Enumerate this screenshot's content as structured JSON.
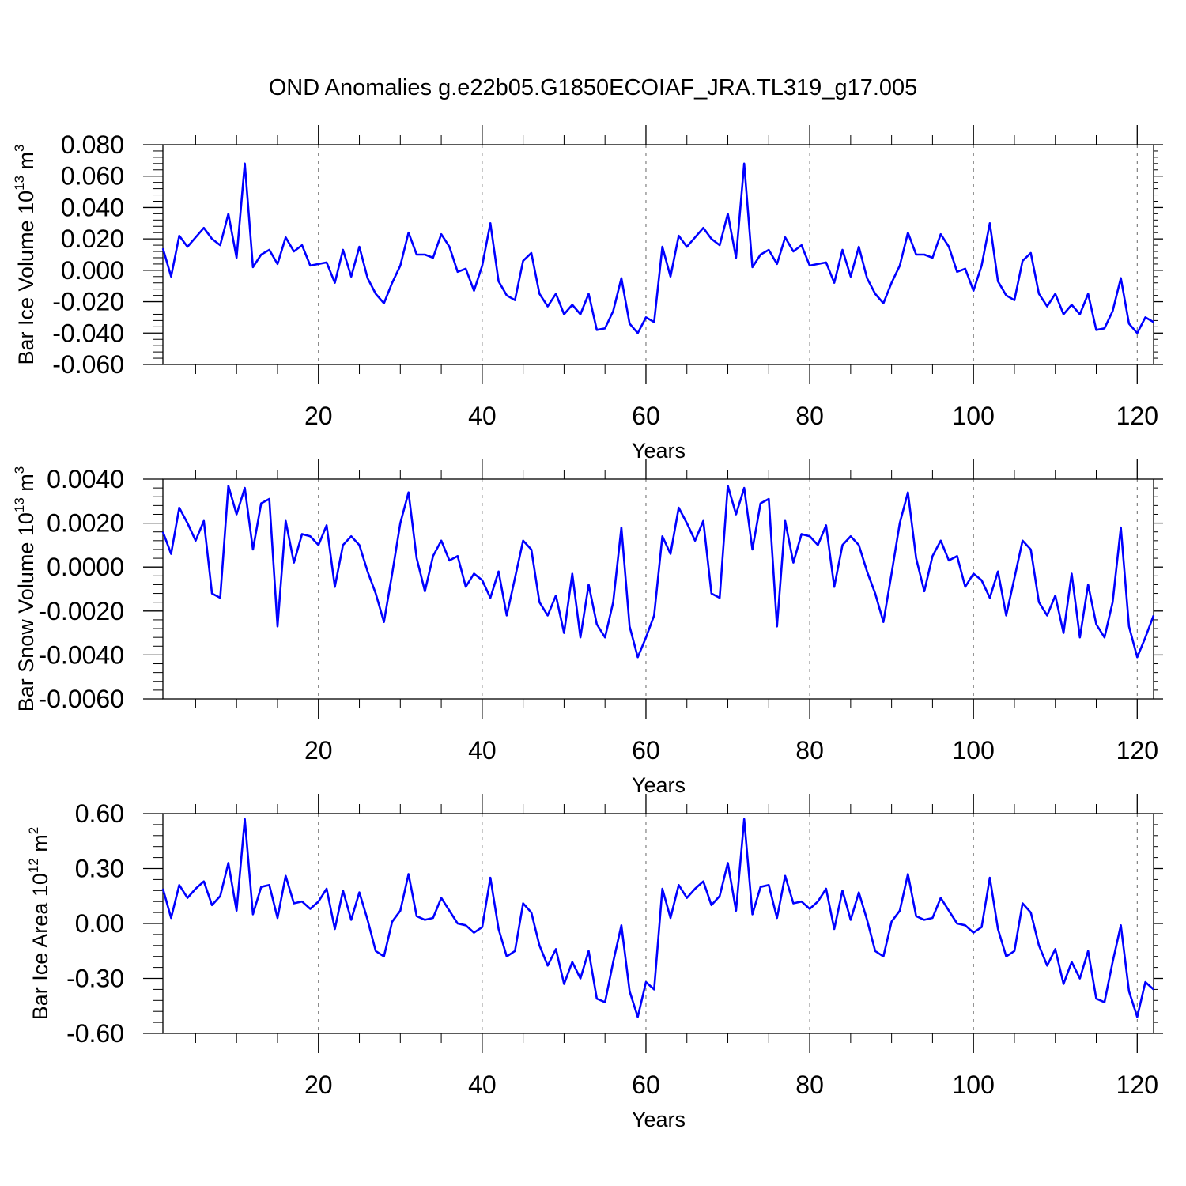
{
  "title": "OND Anomalies g.e22b05.G1850ECOIAF_JRA.TL319_g17.005",
  "colors": {
    "series": "#0000ff",
    "axes": "#000000",
    "grid": "#666666"
  },
  "chart_data": [
    {
      "type": "line",
      "name": "ice-volume",
      "ylabel_main": "Bar Ice Volume 10",
      "ylabel_exp": "13",
      "ylabel_unit": " m",
      "ylabel_unit_exp": "3",
      "xlabel": "Years",
      "xlim": [
        1,
        122
      ],
      "ylim": [
        -0.06,
        0.08
      ],
      "yticks": [
        -0.06,
        -0.04,
        -0.02,
        0.0,
        0.02,
        0.04,
        0.06,
        0.08
      ],
      "ytick_labels": [
        "-0.060",
        "-0.040",
        "-0.020",
        "0.000",
        "0.020",
        "0.040",
        "0.060",
        "0.080"
      ],
      "xticks": [
        20,
        40,
        60,
        80,
        100,
        120
      ],
      "xtick_labels": [
        "20",
        "40",
        "60",
        "80",
        "100",
        "120"
      ],
      "grid_x": [
        20,
        40,
        60,
        80,
        100,
        120
      ],
      "y": [
        0.014,
        -0.004,
        0.022,
        0.015,
        0.021,
        0.027,
        0.02,
        0.016,
        0.036,
        0.008,
        0.068,
        0.002,
        0.01,
        0.013,
        0.004,
        0.021,
        0.012,
        0.016,
        0.003,
        0.004,
        0.005,
        -0.008,
        0.013,
        -0.004,
        0.015,
        -0.005,
        -0.015,
        -0.021,
        -0.008,
        0.003,
        0.024,
        0.01,
        0.01,
        0.008,
        0.023,
        0.015,
        -0.001,
        0.001,
        -0.013,
        0.003,
        0.03,
        -0.007,
        -0.016,
        -0.019,
        0.006,
        0.011,
        -0.015,
        -0.023,
        -0.015,
        -0.028,
        -0.022,
        -0.028,
        -0.015,
        -0.038,
        -0.037,
        -0.026,
        -0.005,
        -0.034,
        -0.04,
        -0.03,
        -0.033,
        0.015,
        -0.004,
        0.022,
        0.015,
        0.021,
        0.027,
        0.02,
        0.016,
        0.036,
        0.008,
        0.068,
        0.002,
        0.01,
        0.013,
        0.004,
        0.021,
        0.012,
        0.016,
        0.003,
        0.004,
        0.005,
        -0.008,
        0.013,
        -0.004,
        0.015,
        -0.005,
        -0.015,
        -0.021,
        -0.008,
        0.003,
        0.024,
        0.01,
        0.01,
        0.008,
        0.023,
        0.015,
        -0.001,
        0.001,
        -0.013,
        0.003,
        0.03,
        -0.007,
        -0.016,
        -0.019,
        0.006,
        0.011,
        -0.015,
        -0.023,
        -0.015,
        -0.028,
        -0.022,
        -0.028,
        -0.015,
        -0.038,
        -0.037,
        -0.026,
        -0.005,
        -0.034,
        -0.04,
        -0.03,
        -0.033
      ]
    },
    {
      "type": "line",
      "name": "snow-volume",
      "ylabel_main": "Bar Snow Volume 10",
      "ylabel_exp": "13",
      "ylabel_unit": " m",
      "ylabel_unit_exp": "3",
      "xlabel": "Years",
      "xlim": [
        1,
        122
      ],
      "ylim": [
        -0.006,
        0.004
      ],
      "yticks": [
        -0.006,
        -0.004,
        -0.002,
        0.0,
        0.002,
        0.004
      ],
      "ytick_labels": [
        "-0.0060",
        "-0.0040",
        "-0.0020",
        "0.0000",
        "0.0020",
        "0.0040"
      ],
      "xticks": [
        20,
        40,
        60,
        80,
        100,
        120
      ],
      "xtick_labels": [
        "20",
        "40",
        "60",
        "80",
        "100",
        "120"
      ],
      "grid_x": [
        20,
        40,
        60,
        80,
        100,
        120
      ],
      "y": [
        0.0016,
        0.0006,
        0.0027,
        0.002,
        0.0012,
        0.0021,
        -0.0012,
        -0.0014,
        0.0037,
        0.0024,
        0.0036,
        0.0008,
        0.0029,
        0.0031,
        -0.0027,
        0.0021,
        0.0002,
        0.0015,
        0.0014,
        0.001,
        0.0019,
        -0.0009,
        0.001,
        0.0014,
        0.001,
        -0.0002,
        -0.0012,
        -0.0025,
        -0.0003,
        0.002,
        0.0034,
        0.0004,
        -0.0011,
        0.0005,
        0.0012,
        0.0003,
        0.0005,
        -0.0009,
        -0.0003,
        -0.0006,
        -0.0014,
        -0.0002,
        -0.0022,
        -0.0005,
        0.0012,
        0.0008,
        -0.0016,
        -0.0022,
        -0.0013,
        -0.003,
        -0.0003,
        -0.0032,
        -0.0008,
        -0.0026,
        -0.0032,
        -0.0016,
        0.0018,
        -0.0027,
        -0.0041,
        -0.0032,
        -0.0022,
        0.0014,
        0.0006,
        0.0027,
        0.002,
        0.0012,
        0.0021,
        -0.0012,
        -0.0014,
        0.0037,
        0.0024,
        0.0036,
        0.0008,
        0.0029,
        0.0031,
        -0.0027,
        0.0021,
        0.0002,
        0.0015,
        0.0014,
        0.001,
        0.0019,
        -0.0009,
        0.001,
        0.0014,
        0.001,
        -0.0002,
        -0.0012,
        -0.0025,
        -0.0003,
        0.002,
        0.0034,
        0.0004,
        -0.0011,
        0.0005,
        0.0012,
        0.0003,
        0.0005,
        -0.0009,
        -0.0003,
        -0.0006,
        -0.0014,
        -0.0002,
        -0.0022,
        -0.0005,
        0.0012,
        0.0008,
        -0.0016,
        -0.0022,
        -0.0013,
        -0.003,
        -0.0003,
        -0.0032,
        -0.0008,
        -0.0026,
        -0.0032,
        -0.0016,
        0.0018,
        -0.0027,
        -0.0041,
        -0.0032,
        -0.0022
      ]
    },
    {
      "type": "line",
      "name": "ice-area",
      "ylabel_main": "Bar Ice Area 10",
      "ylabel_exp": "12",
      "ylabel_unit": " m",
      "ylabel_unit_exp": "2",
      "xlabel": "Years",
      "xlim": [
        1,
        122
      ],
      "ylim": [
        -0.6,
        0.6
      ],
      "yticks": [
        -0.6,
        -0.3,
        0.0,
        0.3,
        0.6
      ],
      "ytick_labels": [
        "-0.60",
        "-0.30",
        "0.00",
        "0.30",
        "0.60"
      ],
      "xticks": [
        20,
        40,
        60,
        80,
        100,
        120
      ],
      "xtick_labels": [
        "20",
        "40",
        "60",
        "80",
        "100",
        "120"
      ],
      "grid_x": [
        20,
        40,
        60,
        80,
        100,
        120
      ],
      "y": [
        0.19,
        0.03,
        0.21,
        0.14,
        0.19,
        0.23,
        0.1,
        0.15,
        0.33,
        0.07,
        0.57,
        0.05,
        0.2,
        0.21,
        0.03,
        0.26,
        0.11,
        0.12,
        0.08,
        0.12,
        0.19,
        -0.03,
        0.18,
        0.02,
        0.17,
        0.02,
        -0.15,
        -0.18,
        0.01,
        0.07,
        0.27,
        0.04,
        0.02,
        0.03,
        0.14,
        0.07,
        0.0,
        -0.01,
        -0.05,
        -0.02,
        0.25,
        -0.03,
        -0.18,
        -0.15,
        0.11,
        0.06,
        -0.12,
        -0.23,
        -0.14,
        -0.33,
        -0.21,
        -0.3,
        -0.15,
        -0.41,
        -0.43,
        -0.21,
        -0.01,
        -0.37,
        -0.51,
        -0.32,
        -0.36,
        0.19,
        0.03,
        0.21,
        0.14,
        0.19,
        0.23,
        0.1,
        0.15,
        0.33,
        0.07,
        0.57,
        0.05,
        0.2,
        0.21,
        0.03,
        0.26,
        0.11,
        0.12,
        0.08,
        0.12,
        0.19,
        -0.03,
        0.18,
        0.02,
        0.17,
        0.02,
        -0.15,
        -0.18,
        0.01,
        0.07,
        0.27,
        0.04,
        0.02,
        0.03,
        0.14,
        0.07,
        0.0,
        -0.01,
        -0.05,
        -0.02,
        0.25,
        -0.03,
        -0.18,
        -0.15,
        0.11,
        0.06,
        -0.12,
        -0.23,
        -0.14,
        -0.33,
        -0.21,
        -0.3,
        -0.15,
        -0.41,
        -0.43,
        -0.21,
        -0.01,
        -0.37,
        -0.51,
        -0.32,
        -0.36
      ]
    }
  ]
}
